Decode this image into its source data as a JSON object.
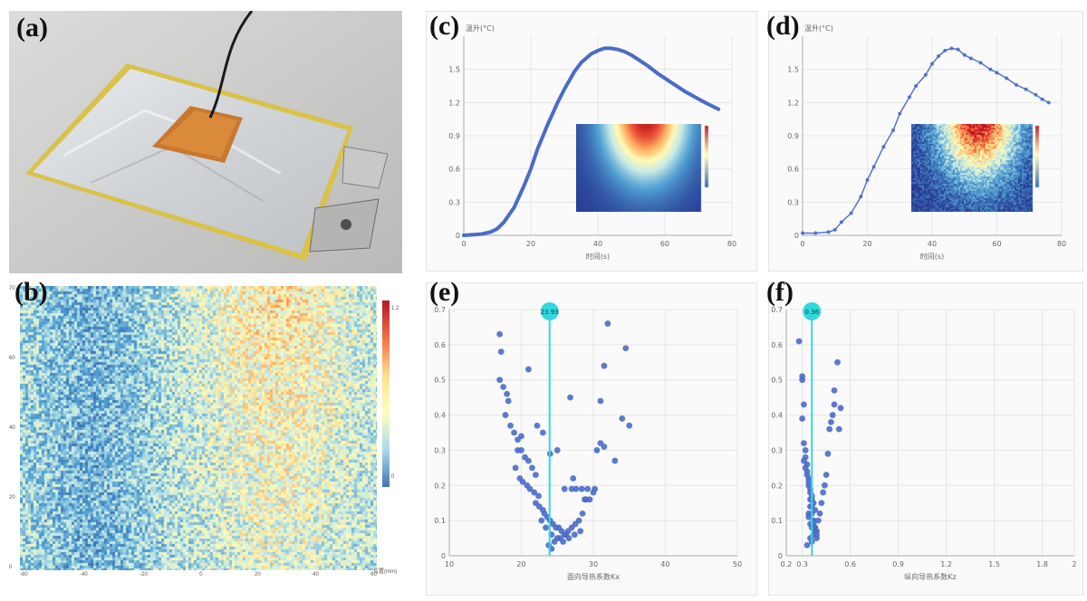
{
  "labels": {
    "a": "(a)",
    "b": "(b)",
    "c": "(c)",
    "d": "(d)",
    "e": "(e)",
    "f": "(f)"
  },
  "colors": {
    "series": "#4a6cc8",
    "cursor": "#32d8de",
    "grid": "#e6e6e6",
    "axis": "#aaaaaa"
  },
  "chart_data": [
    {
      "id": "c",
      "type": "line",
      "ylabel": "温升(°C)",
      "xlabel": "时间(s)",
      "xlim": [
        0,
        80
      ],
      "ylim": [
        0,
        1.8
      ],
      "xticks": [
        0,
        20,
        40,
        60,
        80
      ],
      "yticks": [
        0,
        0.3,
        0.6,
        0.9,
        1.2,
        1.5
      ],
      "grid": true,
      "series": [
        {
          "x": [
            0,
            5,
            8,
            10,
            12,
            15,
            18,
            20,
            22,
            25,
            28,
            30,
            33,
            35,
            38,
            40,
            42,
            44,
            46,
            48,
            50,
            52,
            55,
            58,
            60,
            63,
            66,
            69,
            72,
            74,
            76
          ],
          "y": [
            0,
            0.01,
            0.03,
            0.06,
            0.12,
            0.25,
            0.45,
            0.6,
            0.78,
            1.0,
            1.2,
            1.32,
            1.48,
            1.56,
            1.64,
            1.67,
            1.69,
            1.69,
            1.68,
            1.66,
            1.63,
            1.59,
            1.53,
            1.46,
            1.42,
            1.36,
            1.3,
            1.25,
            1.2,
            1.17,
            1.14
          ]
        }
      ],
      "inset": "heatmap"
    },
    {
      "id": "d",
      "type": "scatter",
      "ylabel": "温升(°C)",
      "xlabel": "时间(s)",
      "xlim": [
        0,
        80
      ],
      "ylim": [
        0,
        1.8
      ],
      "xticks": [
        0,
        20,
        40,
        60,
        80
      ],
      "yticks": [
        0,
        0.3,
        0.6,
        0.9,
        1.2,
        1.5
      ],
      "grid": true,
      "series": [
        {
          "x": [
            0,
            4,
            8,
            10,
            12,
            15,
            18,
            20,
            22,
            25,
            28,
            30,
            33,
            35,
            38,
            40,
            42,
            44,
            46,
            48,
            50,
            52,
            55,
            58,
            60,
            63,
            66,
            69,
            72,
            74,
            76
          ],
          "y": [
            0.02,
            0.02,
            0.03,
            0.05,
            0.12,
            0.2,
            0.35,
            0.5,
            0.62,
            0.8,
            0.95,
            1.1,
            1.25,
            1.35,
            1.45,
            1.55,
            1.62,
            1.67,
            1.69,
            1.68,
            1.63,
            1.6,
            1.56,
            1.5,
            1.47,
            1.42,
            1.36,
            1.32,
            1.27,
            1.23,
            1.2
          ]
        }
      ],
      "inset": "heatmap-noisy"
    },
    {
      "id": "e",
      "type": "scatter",
      "xlabel": "面向导热系数Kx",
      "xlim": [
        10,
        50
      ],
      "ylim": [
        0,
        0.7
      ],
      "xticks": [
        10,
        20,
        30,
        40,
        50
      ],
      "yticks": [
        0,
        0.1,
        0.2,
        0.3,
        0.4,
        0.5,
        0.6,
        0.7
      ],
      "grid": true,
      "cursor": {
        "x": 23.93,
        "label": "23.93"
      },
      "series": [
        {
          "x": [
            17,
            17.2,
            17,
            17.5,
            18,
            18.2,
            17.8,
            18.5,
            19,
            19.5,
            20,
            20.5,
            21,
            21.5,
            22,
            19.2,
            19.8,
            20.2,
            20.8,
            21.2,
            21.8,
            22.4,
            22,
            22.5,
            23,
            23.2,
            23.6,
            24,
            24.4,
            24.8,
            25.2,
            25.6,
            26,
            26.5,
            27,
            27.5,
            28,
            28.5,
            29,
            22.8,
            23.4,
            24.2,
            25,
            25.8,
            26.6,
            27.4,
            28.2,
            21,
            20,
            19.5,
            23.8,
            24.6,
            25.4,
            26.2,
            27,
            30.5,
            31,
            31.5,
            32,
            33,
            34,
            34.5,
            35,
            31,
            30.2,
            29.2,
            28.4,
            27.6,
            26.8,
            22.2,
            23,
            24,
            25,
            26,
            27.2,
            28.8,
            31.5,
            24.2,
            29.5,
            30
          ],
          "y": [
            0.63,
            0.58,
            0.5,
            0.48,
            0.46,
            0.44,
            0.4,
            0.37,
            0.35,
            0.33,
            0.3,
            0.28,
            0.27,
            0.25,
            0.23,
            0.25,
            0.22,
            0.21,
            0.2,
            0.19,
            0.18,
            0.17,
            0.15,
            0.14,
            0.13,
            0.12,
            0.11,
            0.1,
            0.09,
            0.08,
            0.08,
            0.07,
            0.06,
            0.07,
            0.08,
            0.09,
            0.1,
            0.12,
            0.16,
            0.1,
            0.08,
            0.06,
            0.05,
            0.04,
            0.05,
            0.06,
            0.07,
            0.53,
            0.34,
            0.3,
            0.03,
            0.04,
            0.05,
            0.06,
            0.19,
            0.3,
            0.32,
            0.54,
            0.66,
            0.27,
            0.39,
            0.59,
            0.37,
            0.44,
            0.19,
            0.19,
            0.19,
            0.19,
            0.45,
            0.37,
            0.35,
            0.29,
            0.3,
            0.19,
            0.22,
            0.16,
            0.31,
            0.02,
            0.16,
            0.18
          ]
        }
      ]
    },
    {
      "id": "f",
      "type": "scatter",
      "xlabel": "纵向导热系数Kz",
      "xlim": [
        0.2,
        2
      ],
      "ylim": [
        0,
        0.7
      ],
      "xticks": [
        0.2,
        0.3,
        0.6,
        0.9,
        1.2,
        1.5,
        1.8,
        2
      ],
      "yticks": [
        0,
        0.1,
        0.2,
        0.3,
        0.4,
        0.5,
        0.6,
        0.7
      ],
      "grid": true,
      "cursor": {
        "x": 0.36,
        "label": "0.36"
      },
      "series": [
        {
          "x": [
            0.28,
            0.3,
            0.3,
            0.31,
            0.3,
            0.31,
            0.32,
            0.32,
            0.33,
            0.33,
            0.34,
            0.34,
            0.35,
            0.35,
            0.36,
            0.36,
            0.37,
            0.37,
            0.38,
            0.38,
            0.39,
            0.39,
            0.4,
            0.41,
            0.42,
            0.43,
            0.44,
            0.45,
            0.46,
            0.47,
            0.48,
            0.49,
            0.5,
            0.5,
            0.52,
            0.53,
            0.54,
            0.31,
            0.32,
            0.33,
            0.34,
            0.35,
            0.36,
            0.37,
            0.38,
            0.34,
            0.35,
            0.36,
            0.37,
            0.35,
            0.36,
            0.33,
            0.34,
            0.35,
            0.36,
            0.37,
            0.38,
            0.39
          ],
          "y": [
            0.61,
            0.51,
            0.5,
            0.43,
            0.39,
            0.32,
            0.3,
            0.28,
            0.26,
            0.24,
            0.22,
            0.2,
            0.18,
            0.16,
            0.14,
            0.12,
            0.1,
            0.09,
            0.08,
            0.07,
            0.06,
            0.05,
            0.1,
            0.12,
            0.15,
            0.18,
            0.2,
            0.23,
            0.29,
            0.36,
            0.38,
            0.4,
            0.43,
            0.47,
            0.55,
            0.36,
            0.42,
            0.27,
            0.25,
            0.23,
            0.21,
            0.19,
            0.17,
            0.15,
            0.13,
            0.11,
            0.09,
            0.08,
            0.06,
            0.05,
            0.04,
            0.03,
            0.12,
            0.14,
            0.16,
            0.1,
            0.08,
            0.07
          ]
        }
      ]
    }
  ],
  "map_b": {
    "ticks_x": [
      "-60",
      "-40",
      "-20",
      "0",
      "20",
      "40",
      "60"
    ],
    "ticks_y": [
      "0",
      "20",
      "40",
      "60",
      "70"
    ],
    "unit": "位置(mm)",
    "colorbar": [
      "1.2",
      "0"
    ]
  }
}
